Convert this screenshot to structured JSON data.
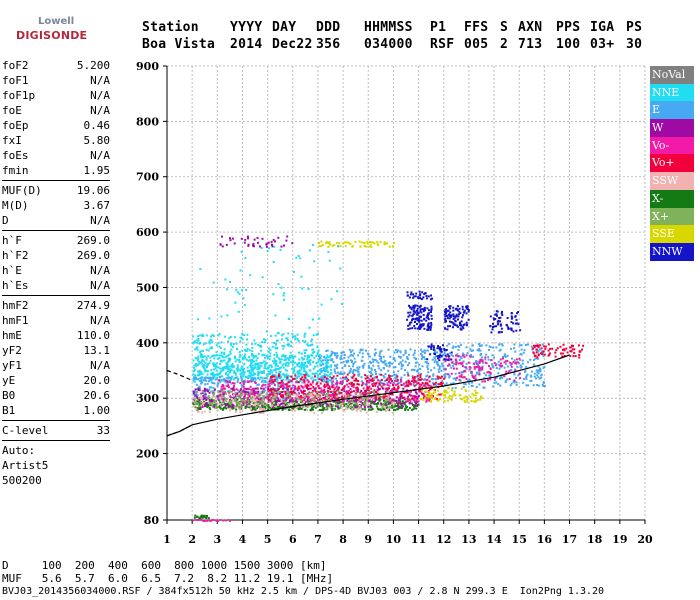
{
  "logo": {
    "line1": "Lowell",
    "line2": "DIGISONDE"
  },
  "header": {
    "row1": [
      "Station",
      "YYYY",
      "DAY",
      "DDD",
      "HHMMSS",
      "P1",
      "FFS",
      "S",
      "AXN",
      "PPS",
      "IGA",
      "PS"
    ],
    "row2": [
      "Boa Vista",
      "2014",
      "Dec22",
      "356",
      "034000",
      "RSF",
      "005",
      "2",
      "713",
      "100",
      "03+",
      "30"
    ]
  },
  "params": {
    "group1": [
      {
        "name": "foF2",
        "value": "5.200"
      },
      {
        "name": "foF1",
        "value": "N/A"
      },
      {
        "name": "foF1p",
        "value": "N/A"
      },
      {
        "name": "foE",
        "value": "N/A"
      },
      {
        "name": "foEp",
        "value": "0.46"
      },
      {
        "name": "fxI",
        "value": "5.80"
      },
      {
        "name": "foEs",
        "value": "N/A"
      },
      {
        "name": "fmin",
        "value": "1.95"
      }
    ],
    "group2": [
      {
        "name": "MUF(D)",
        "value": "19.06"
      },
      {
        "name": "M(D)",
        "value": "3.67"
      },
      {
        "name": "D",
        "value": "N/A"
      }
    ],
    "group3": [
      {
        "name": "h`F",
        "value": "269.0"
      },
      {
        "name": "h`F2",
        "value": "269.0"
      },
      {
        "name": "h`E",
        "value": "N/A"
      },
      {
        "name": "h`Es",
        "value": "N/A"
      }
    ],
    "group4": [
      {
        "name": "hmF2",
        "value": "274.9"
      },
      {
        "name": "hmF1",
        "value": "N/A"
      },
      {
        "name": "hmE",
        "value": "110.0"
      },
      {
        "name": "yF2",
        "value": "13.1"
      },
      {
        "name": "yF1",
        "value": "N/A"
      },
      {
        "name": "yE",
        "value": "20.0"
      },
      {
        "name": "B0",
        "value": "20.6"
      },
      {
        "name": "B1",
        "value": "1.00"
      }
    ],
    "clevel": {
      "name": "C-level",
      "value": "33"
    },
    "auto_label": "Auto:",
    "auto_name": "Artist5",
    "auto_version": "500200"
  },
  "legend": [
    {
      "label": "NoVal",
      "color": "#808080"
    },
    {
      "label": "NNE",
      "color": "#22ddf2"
    },
    {
      "label": "E",
      "color": "#47a9f2"
    },
    {
      "label": "W",
      "color": "#a00aa4"
    },
    {
      "label": "Vo-",
      "color": "#f21aa6"
    },
    {
      "label": "Vo+",
      "color": "#f2003c"
    },
    {
      "label": "SSW",
      "color": "#f2b2b2"
    },
    {
      "label": "X-",
      "color": "#147a14"
    },
    {
      "label": "X+",
      "color": "#7fb25a"
    },
    {
      "label": "SSE",
      "color": "#d8d800"
    },
    {
      "label": "NNW",
      "color": "#1414c8"
    }
  ],
  "footer": {
    "line1": "D     100  200  400  600  800 1000 1500 3000 [km]",
    "line2": "MUF   5.6  5.7  6.0  6.5  7.2  8.2 11.2 19.1 [MHz]",
    "line3": "BVJ03_2014356034000.RSF / 384fx512h 50 kHz 2.5 km / DPS-4D BVJ03 003 / 2.8 N 299.3 E  Ion2Png 1.3.20"
  },
  "chart_data": {
    "type": "scatter",
    "xlim": [
      1,
      20
    ],
    "ylim": [
      80,
      900
    ],
    "x_ticks": [
      1,
      2,
      3,
      4,
      5,
      6,
      7,
      8,
      9,
      10,
      11,
      12,
      13,
      14,
      15,
      16,
      17,
      18,
      19,
      20
    ],
    "y_ticks": [
      80,
      200,
      300,
      400,
      500,
      600,
      700,
      800,
      900
    ],
    "grid": true,
    "legend_position": "right",
    "profile_curve": [
      [
        1,
        232
      ],
      [
        1.5,
        240
      ],
      [
        2,
        252
      ],
      [
        3,
        262
      ],
      [
        4,
        270
      ],
      [
        6,
        285
      ],
      [
        8,
        298
      ],
      [
        10,
        310
      ],
      [
        12,
        322
      ],
      [
        14,
        338
      ],
      [
        16,
        362
      ],
      [
        17,
        378
      ]
    ],
    "profile_curve_top": [
      [
        1,
        350
      ],
      [
        1.5,
        342
      ],
      [
        2,
        332
      ]
    ],
    "clusters": [
      {
        "series": "NNE",
        "x": [
          2,
          7.5
        ],
        "y": [
          330,
          380
        ],
        "n": 700
      },
      {
        "series": "NNE",
        "x": [
          2,
          7
        ],
        "y": [
          380,
          420
        ],
        "n": 180
      },
      {
        "series": "E",
        "x": [
          7,
          12
        ],
        "y": [
          325,
          390
        ],
        "n": 420
      },
      {
        "series": "E",
        "x": [
          12,
          16
        ],
        "y": [
          320,
          400
        ],
        "n": 300
      },
      {
        "series": "E",
        "x": [
          2,
          6
        ],
        "y": [
          300,
          340
        ],
        "n": 200
      },
      {
        "series": "X-",
        "x": [
          2,
          11
        ],
        "y": [
          280,
          300
        ],
        "n": 500
      },
      {
        "series": "W",
        "x": [
          2,
          11
        ],
        "y": [
          285,
          320
        ],
        "n": 450
      },
      {
        "series": "Vo-",
        "x": [
          3,
          11.5
        ],
        "y": [
          295,
          335
        ],
        "n": 380
      },
      {
        "series": "Vo+",
        "x": [
          5,
          12
        ],
        "y": [
          300,
          345
        ],
        "n": 300
      },
      {
        "series": "Vo+",
        "x": [
          15.5,
          17.5
        ],
        "y": [
          375,
          400
        ],
        "n": 70
      },
      {
        "series": "Vo-",
        "x": [
          12,
          15
        ],
        "y": [
          330,
          380
        ],
        "n": 120
      },
      {
        "series": "SSE",
        "x": [
          11,
          13.5
        ],
        "y": [
          295,
          320
        ],
        "n": 90
      },
      {
        "series": "SSW",
        "x": [
          2,
          10
        ],
        "y": [
          275,
          310
        ],
        "n": 200
      },
      {
        "series": "X+",
        "x": [
          2,
          10
        ],
        "y": [
          285,
          315
        ],
        "n": 180
      },
      {
        "series": "NNW",
        "x": [
          10.5,
          11.5
        ],
        "y": [
          425,
          470
        ],
        "n": 120
      },
      {
        "series": "NNW",
        "x": [
          12,
          13
        ],
        "y": [
          425,
          470
        ],
        "n": 100
      },
      {
        "series": "NNW",
        "x": [
          13.8,
          15
        ],
        "y": [
          420,
          460
        ],
        "n": 60
      },
      {
        "series": "NNW",
        "x": [
          11.3,
          12.3
        ],
        "y": [
          370,
          400
        ],
        "n": 40
      },
      {
        "series": "SSE",
        "x": [
          7,
          10
        ],
        "y": [
          575,
          585
        ],
        "n": 60
      },
      {
        "series": "W",
        "x": [
          3,
          6
        ],
        "y": [
          575,
          595
        ],
        "n": 40
      },
      {
        "series": "NNE",
        "x": [
          2,
          8
        ],
        "y": [
          420,
          580
        ],
        "n": 60
      },
      {
        "series": "X-",
        "x": [
          2,
          2.7
        ],
        "y": [
          85,
          90
        ],
        "n": 20
      },
      {
        "series": "Vo-",
        "x": [
          2,
          3.5
        ],
        "y": [
          80,
          82
        ],
        "n": 20
      },
      {
        "series": "NNW",
        "x": [
          10.5,
          11.5
        ],
        "y": [
          480,
          495
        ],
        "n": 30
      }
    ]
  }
}
